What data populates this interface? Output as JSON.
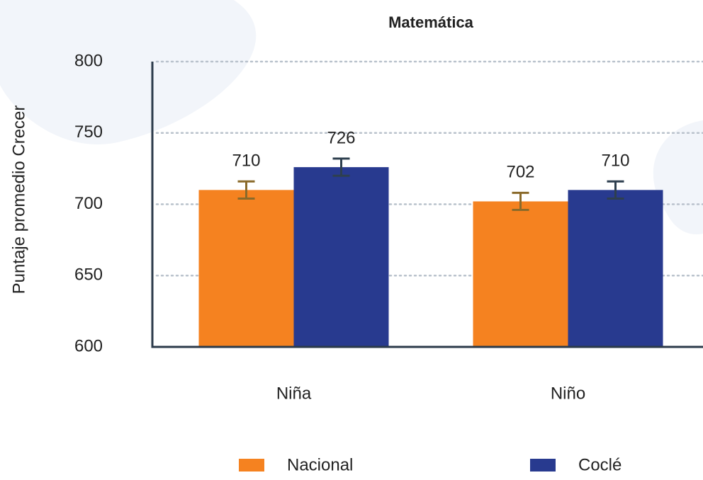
{
  "chart_data": {
    "type": "bar",
    "title": "Matemática",
    "y_label": "Puntaje promedio Crecer",
    "categories": [
      "Niña",
      "Niño"
    ],
    "series": [
      {
        "name": "Nacional",
        "color": "#f58220",
        "error_color": "#8a6a2a",
        "values": [
          710,
          702
        ],
        "errors": [
          6,
          6
        ]
      },
      {
        "name": "Coclé",
        "color": "#283a8f",
        "error_color": "#2e3f4f",
        "values": [
          726,
          710
        ],
        "errors": [
          6,
          6
        ]
      }
    ],
    "ylim": [
      600,
      800
    ],
    "yticks": [
      600,
      650,
      700,
      750,
      800
    ],
    "grid": true
  }
}
